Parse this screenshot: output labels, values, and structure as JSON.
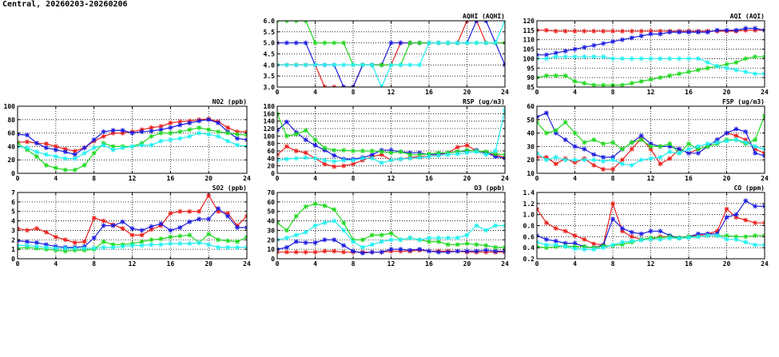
{
  "page_title": "Central, 20260203-20260206",
  "colors": {
    "red": "#e8201c",
    "blue": "#1c1ce0",
    "green": "#1fd81f",
    "cyan": "#1ff0f0"
  },
  "chart_data": [
    {
      "id": "aqhi",
      "type": "line",
      "title": "AQHI (AQHI)",
      "xlim": [
        0,
        24
      ],
      "ylim": [
        3.0,
        6.0
      ],
      "xticks": [
        0,
        4,
        8,
        12,
        16,
        20,
        24
      ],
      "yticks": [
        3.0,
        3.5,
        4.0,
        4.5,
        5.0,
        5.5,
        6.0
      ],
      "ytick_decimals": 1,
      "grid": true,
      "series": [
        {
          "color": "red",
          "values": [
            4,
            4,
            4,
            4,
            4,
            3,
            3,
            3,
            3,
            4,
            4,
            4,
            4,
            5,
            5,
            5,
            5,
            5,
            5,
            5,
            6,
            6,
            5,
            5,
            5
          ]
        },
        {
          "color": "blue",
          "values": [
            5,
            5,
            5,
            5,
            4,
            4,
            4,
            3,
            3,
            4,
            4,
            4,
            5,
            5,
            5,
            5,
            5,
            5,
            5,
            5,
            5,
            6,
            6,
            5,
            4
          ]
        },
        {
          "color": "green",
          "values": [
            6,
            6,
            6,
            6,
            5,
            5,
            5,
            5,
            4,
            4,
            4,
            4,
            4,
            4,
            5,
            5,
            5,
            5,
            5,
            5,
            5,
            5,
            5,
            5,
            5
          ]
        },
        {
          "color": "cyan",
          "values": [
            4,
            4,
            4,
            4,
            4,
            4,
            4,
            4,
            4,
            4,
            4,
            3,
            4,
            4,
            4,
            4,
            5,
            5,
            5,
            5,
            5,
            5,
            5,
            5,
            6
          ]
        }
      ]
    },
    {
      "id": "aqi",
      "type": "line",
      "title": "AQI (AQI)",
      "xlim": [
        0,
        24
      ],
      "ylim": [
        85,
        120
      ],
      "xticks": [
        0,
        4,
        8,
        12,
        16,
        20,
        24
      ],
      "yticks": [
        85,
        90,
        95,
        100,
        105,
        110,
        115,
        120
      ],
      "ytick_decimals": 0,
      "grid": true,
      "series": [
        {
          "color": "red",
          "values": [
            115,
            115,
            114.5,
            114.5,
            114.5,
            114.5,
            114.5,
            114.5,
            114.5,
            114.5,
            114.5,
            114.5,
            114.5,
            114.5,
            114.5,
            114.5,
            114.5,
            114.5,
            114.5,
            114.5,
            114.5,
            114.5,
            115,
            115,
            115
          ]
        },
        {
          "color": "blue",
          "values": [
            102,
            102,
            103,
            104,
            105,
            106,
            107,
            108,
            109,
            110,
            111,
            112,
            113,
            113,
            114,
            114,
            114,
            114,
            114,
            115,
            115,
            115,
            116,
            116,
            115
          ]
        },
        {
          "color": "green",
          "values": [
            90,
            91,
            91,
            91,
            88,
            87,
            86,
            86,
            86,
            86,
            87,
            88,
            89,
            90,
            91,
            92,
            93,
            94,
            95,
            96,
            97,
            98,
            100,
            101,
            101
          ]
        },
        {
          "color": "cyan",
          "values": [
            100,
            100,
            101,
            101,
            101,
            101,
            101,
            101,
            100,
            100,
            100,
            100,
            100,
            100,
            100,
            100,
            100,
            100,
            98,
            96,
            95,
            94,
            93,
            92,
            92
          ]
        }
      ]
    },
    {
      "id": "no2",
      "type": "line",
      "title": "NO2 (ppb)",
      "xlim": [
        0,
        24
      ],
      "ylim": [
        0,
        100
      ],
      "xticks": [
        0,
        4,
        8,
        12,
        16,
        20,
        24
      ],
      "yticks": [
        0,
        20,
        40,
        60,
        80,
        100
      ],
      "ytick_decimals": 0,
      "grid": true,
      "series": [
        {
          "color": "red",
          "values": [
            46,
            47,
            45,
            44,
            40,
            36,
            33,
            38,
            48,
            55,
            60,
            60,
            62,
            65,
            68,
            70,
            75,
            77,
            78,
            80,
            81,
            77,
            68,
            62,
            62
          ]
        },
        {
          "color": "blue",
          "values": [
            58,
            57,
            45,
            38,
            35,
            32,
            28,
            38,
            50,
            62,
            64,
            64,
            60,
            62,
            63,
            65,
            68,
            72,
            75,
            78,
            80,
            75,
            62,
            52,
            50
          ]
        },
        {
          "color": "green",
          "values": [
            45,
            35,
            25,
            12,
            8,
            5,
            5,
            12,
            30,
            45,
            40,
            40,
            40,
            45,
            55,
            60,
            60,
            62,
            65,
            68,
            65,
            62,
            60,
            58,
            57
          ]
        },
        {
          "color": "cyan",
          "values": [
            40,
            38,
            32,
            28,
            25,
            22,
            22,
            30,
            38,
            42,
            35,
            38,
            40,
            42,
            42,
            48,
            50,
            52,
            55,
            60,
            58,
            55,
            48,
            42,
            40
          ]
        }
      ]
    },
    {
      "id": "rsp",
      "type": "line",
      "title": "RSP (ug/m3)",
      "xlim": [
        0,
        24
      ],
      "ylim": [
        0,
        180
      ],
      "xticks": [
        0,
        4,
        8,
        12,
        16,
        20,
        24
      ],
      "yticks": [
        0,
        20,
        40,
        60,
        80,
        100,
        120,
        140,
        160,
        180
      ],
      "ytick_decimals": 0,
      "grid": true,
      "series": [
        {
          "color": "red",
          "values": [
            50,
            72,
            60,
            55,
            40,
            25,
            18,
            20,
            25,
            35,
            45,
            50,
            35,
            38,
            42,
            45,
            45,
            50,
            55,
            70,
            75,
            60,
            55,
            50,
            42
          ]
        },
        {
          "color": "blue",
          "values": [
            115,
            138,
            110,
            90,
            75,
            62,
            48,
            38,
            38,
            42,
            50,
            62,
            62,
            58,
            55,
            55,
            50,
            52,
            55,
            58,
            60,
            62,
            55,
            45,
            40
          ]
        },
        {
          "color": "green",
          "values": [
            160,
            100,
            105,
            115,
            90,
            68,
            62,
            62,
            60,
            60,
            60,
            58,
            55,
            58,
            50,
            50,
            52,
            55,
            55,
            58,
            62,
            60,
            58,
            52,
            50
          ]
        },
        {
          "color": "cyan",
          "values": [
            35,
            38,
            40,
            42,
            40,
            35,
            32,
            35,
            35,
            40,
            40,
            28,
            35,
            38,
            40,
            42,
            45,
            48,
            50,
            52,
            55,
            58,
            50,
            60,
            170
          ]
        }
      ]
    },
    {
      "id": "fsp",
      "type": "line",
      "title": "FSP (ug/m3)",
      "xlim": [
        0,
        24
      ],
      "ylim": [
        10,
        60
      ],
      "xticks": [
        0,
        4,
        8,
        12,
        16,
        20,
        24
      ],
      "yticks": [
        10,
        20,
        30,
        40,
        50,
        60
      ],
      "ytick_decimals": 0,
      "grid": true,
      "series": [
        {
          "color": "red",
          "values": [
            22,
            22,
            17,
            21,
            18,
            21,
            16,
            13,
            13,
            20,
            28,
            36,
            28,
            17,
            21,
            28,
            25,
            28,
            30,
            35,
            40,
            38,
            35,
            28,
            25
          ]
        },
        {
          "color": "blue",
          "values": [
            52,
            55,
            40,
            35,
            30,
            28,
            24,
            22,
            22,
            28,
            33,
            38,
            32,
            30,
            30,
            28,
            25,
            25,
            30,
            35,
            40,
            43,
            41,
            25,
            23
          ]
        },
        {
          "color": "green",
          "values": [
            48,
            40,
            42,
            48,
            40,
            33,
            35,
            32,
            33,
            28,
            33,
            35,
            30,
            30,
            32,
            25,
            32,
            28,
            30,
            32,
            35,
            35,
            32,
            35,
            53
          ]
        },
        {
          "color": "cyan",
          "values": [
            25,
            20,
            22,
            20,
            20,
            20,
            20,
            19,
            20,
            17,
            16,
            20,
            21,
            22,
            26,
            25,
            28,
            30,
            32,
            33,
            34,
            35,
            33,
            30,
            28
          ]
        }
      ]
    },
    {
      "id": "so2",
      "type": "line",
      "title": "SO2 (ppb)",
      "xlim": [
        0,
        24
      ],
      "ylim": [
        0,
        7
      ],
      "xticks": [
        0,
        4,
        8,
        12,
        16,
        20,
        24
      ],
      "yticks": [
        0,
        1,
        2,
        3,
        4,
        5,
        6,
        7
      ],
      "ytick_decimals": 0,
      "grid": true,
      "series": [
        {
          "color": "red",
          "values": [
            3.2,
            3.0,
            3.2,
            2.8,
            2.3,
            2.0,
            1.7,
            1.8,
            4.3,
            4.0,
            3.6,
            3.2,
            2.5,
            2.5,
            3.1,
            3.5,
            4.8,
            5.0,
            5.0,
            5.0,
            6.7,
            5.0,
            4.8,
            3.5,
            4.5
          ]
        },
        {
          "color": "blue",
          "values": [
            1.9,
            1.8,
            1.7,
            1.5,
            1.3,
            1.2,
            1.2,
            1.3,
            2.2,
            3.5,
            3.5,
            3.9,
            3.2,
            3.0,
            3.4,
            3.7,
            3.0,
            3.3,
            3.9,
            4.2,
            4.2,
            5.3,
            4.5,
            3.3,
            3.3
          ]
        },
        {
          "color": "green",
          "values": [
            1.1,
            1.2,
            1.1,
            1.0,
            0.9,
            0.8,
            0.9,
            0.9,
            1.0,
            1.8,
            1.5,
            1.5,
            1.6,
            1.8,
            2.0,
            2.1,
            2.3,
            2.4,
            2.5,
            1.7,
            2.6,
            2.0,
            1.9,
            1.8,
            2.3
          ]
        },
        {
          "color": "cyan",
          "values": [
            1.4,
            1.4,
            1.3,
            1.2,
            1.1,
            1.1,
            1.1,
            1.1,
            1.1,
            1.2,
            1.2,
            1.3,
            1.4,
            1.4,
            1.5,
            1.5,
            1.6,
            1.6,
            1.6,
            1.7,
            1.5,
            1.2,
            1.2,
            1.2,
            1.2
          ]
        }
      ]
    },
    {
      "id": "o3",
      "type": "line",
      "title": "O3 (ppb)",
      "xlim": [
        0,
        24
      ],
      "ylim": [
        0,
        70
      ],
      "xticks": [
        0,
        4,
        8,
        12,
        16,
        20,
        24
      ],
      "yticks": [
        0,
        10,
        20,
        30,
        40,
        50,
        60,
        70
      ],
      "ytick_decimals": 0,
      "grid": true,
      "series": [
        {
          "color": "red",
          "values": [
            7,
            7,
            7,
            7,
            7,
            8,
            8,
            7,
            7,
            7,
            7,
            7,
            8,
            8,
            8,
            9,
            8,
            8,
            8,
            8,
            7,
            7,
            7,
            7,
            7
          ]
        },
        {
          "color": "blue",
          "values": [
            10,
            12,
            18,
            17,
            17,
            20,
            20,
            14,
            8,
            6,
            7,
            7,
            10,
            10,
            9,
            10,
            8,
            7,
            7,
            8,
            8,
            8,
            9,
            8,
            8
          ]
        },
        {
          "color": "green",
          "values": [
            38,
            30,
            45,
            55,
            58,
            56,
            52,
            38,
            20,
            20,
            25,
            25,
            27,
            20,
            22,
            20,
            18,
            18,
            15,
            15,
            16,
            15,
            14,
            12,
            12
          ]
        },
        {
          "color": "cyan",
          "values": [
            20,
            22,
            25,
            28,
            35,
            38,
            40,
            30,
            18,
            12,
            15,
            18,
            20,
            20,
            22,
            20,
            22,
            22,
            22,
            22,
            25,
            35,
            30,
            35,
            35
          ]
        }
      ]
    },
    {
      "id": "co",
      "type": "line",
      "title": "CO (ppm)",
      "xlim": [
        0,
        24
      ],
      "ylim": [
        0.2,
        1.4
      ],
      "xticks": [
        0,
        4,
        8,
        12,
        16,
        20,
        24
      ],
      "yticks": [
        0.2,
        0.4,
        0.6,
        0.8,
        1.0,
        1.2,
        1.4
      ],
      "ytick_decimals": 1,
      "grid": true,
      "series": [
        {
          "color": "red",
          "values": [
            1.1,
            0.85,
            0.75,
            0.7,
            0.62,
            0.55,
            0.47,
            0.45,
            1.2,
            0.7,
            0.6,
            0.55,
            0.55,
            0.6,
            0.6,
            0.58,
            0.6,
            0.62,
            0.65,
            0.7,
            1.1,
            0.95,
            0.9,
            0.85,
            0.85
          ]
        },
        {
          "color": "blue",
          "values": [
            0.62,
            0.55,
            0.52,
            0.48,
            0.48,
            0.42,
            0.4,
            0.45,
            0.92,
            0.75,
            0.68,
            0.65,
            0.7,
            0.7,
            0.62,
            0.58,
            0.6,
            0.65,
            0.65,
            0.65,
            0.95,
            1.0,
            1.25,
            1.15,
            1.15
          ]
        },
        {
          "color": "green",
          "values": [
            0.42,
            0.4,
            0.42,
            0.43,
            0.42,
            0.42,
            0.4,
            0.43,
            0.44,
            0.46,
            0.5,
            0.55,
            0.58,
            0.58,
            0.6,
            0.58,
            0.6,
            0.6,
            0.62,
            0.62,
            0.62,
            0.6,
            0.6,
            0.62,
            0.62
          ]
        },
        {
          "color": "cyan",
          "values": [
            0.5,
            0.45,
            0.45,
            0.42,
            0.38,
            0.37,
            0.37,
            0.4,
            0.45,
            0.5,
            0.52,
            0.54,
            0.55,
            0.55,
            0.57,
            0.57,
            0.58,
            0.6,
            0.62,
            0.62,
            0.55,
            0.55,
            0.5,
            0.45,
            0.45
          ]
        }
      ]
    }
  ]
}
